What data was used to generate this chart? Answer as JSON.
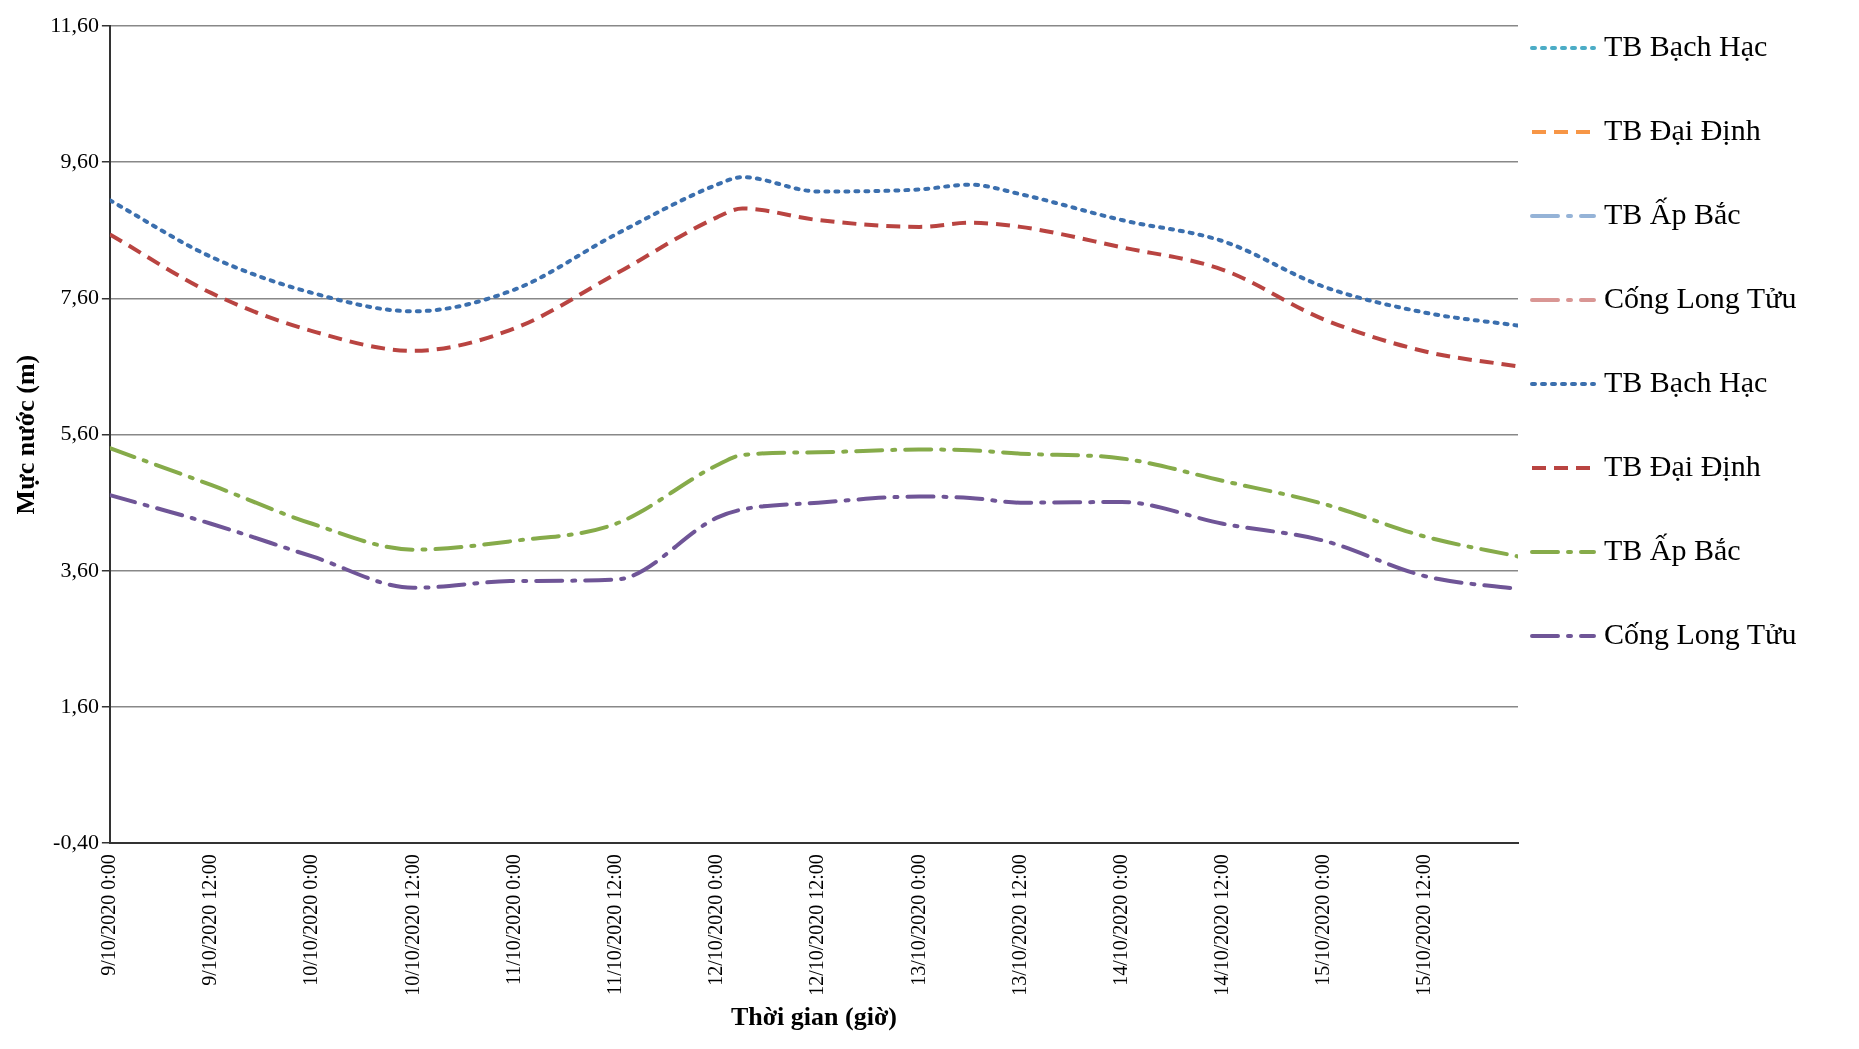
{
  "chart_data": {
    "type": "line",
    "xlabel": "Thời gian (giờ)",
    "ylabel": "Mực nước (m)",
    "x": [
      "2020-10-09T00:00",
      "2020-10-09T12:00",
      "2020-10-10T00:00",
      "2020-10-10T12:00",
      "2020-10-11T00:00",
      "2020-10-11T12:00",
      "2020-10-12T00:00",
      "2020-10-12T03:00",
      "2020-10-12T12:00",
      "2020-10-13T00:00",
      "2020-10-13T06:00",
      "2020-10-13T12:00",
      "2020-10-14T00:00",
      "2020-10-14T12:00",
      "2020-10-15T00:00",
      "2020-10-15T12:00",
      "2020-10-15T23:00"
    ],
    "xlim": [
      "2020-10-09T00:00",
      "2020-10-15T23:00"
    ],
    "xticks": [
      {
        "value": "2020-10-09T00:00",
        "label": "9/10/2020 0:00"
      },
      {
        "value": "2020-10-09T12:00",
        "label": "9/10/2020 12:00"
      },
      {
        "value": "2020-10-10T00:00",
        "label": "10/10/2020 0:00"
      },
      {
        "value": "2020-10-10T12:00",
        "label": "10/10/2020 12:00"
      },
      {
        "value": "2020-10-11T00:00",
        "label": "11/10/2020 0:00"
      },
      {
        "value": "2020-10-11T12:00",
        "label": "11/10/2020 12:00"
      },
      {
        "value": "2020-10-12T00:00",
        "label": "12/10/2020 0:00"
      },
      {
        "value": "2020-10-12T12:00",
        "label": "12/10/2020 12:00"
      },
      {
        "value": "2020-10-13T00:00",
        "label": "13/10/2020 0:00"
      },
      {
        "value": "2020-10-13T12:00",
        "label": "13/10/2020 12:00"
      },
      {
        "value": "2020-10-14T00:00",
        "label": "14/10/2020 0:00"
      },
      {
        "value": "2020-10-14T12:00",
        "label": "14/10/2020 12:00"
      },
      {
        "value": "2020-10-15T00:00",
        "label": "15/10/2020 0:00"
      },
      {
        "value": "2020-10-15T12:00",
        "label": "15/10/2020 12:00"
      }
    ],
    "ylim": [
      -0.4,
      11.6
    ],
    "yticks": [
      {
        "value": -0.4,
        "label": "-0,40"
      },
      {
        "value": 1.6,
        "label": "1,60"
      },
      {
        "value": 3.6,
        "label": "3,60"
      },
      {
        "value": 5.6,
        "label": "5,60"
      },
      {
        "value": 7.6,
        "label": "7,60"
      },
      {
        "value": 9.6,
        "label": "9,60"
      },
      {
        "value": 11.6,
        "label": "11,60"
      }
    ],
    "grid": "y",
    "legend": "right",
    "marker": "none",
    "series": [
      {
        "name": "TB Bạch Hạc",
        "color": "#4bacc6",
        "line_style": "dotted",
        "values": [
          null,
          null,
          null,
          null,
          null,
          null,
          null,
          null,
          null,
          null,
          null,
          null,
          null,
          null,
          null,
          null,
          null
        ]
      },
      {
        "name": "TB Đại Định",
        "color": "#f79646",
        "line_style": "dashed",
        "values": [
          null,
          null,
          null,
          null,
          null,
          null,
          null,
          null,
          null,
          null,
          null,
          null,
          null,
          null,
          null,
          null,
          null
        ]
      },
      {
        "name": "TB Ấp Bắc",
        "color": "#95b3d7",
        "line_style": "dashdot",
        "values": [
          null,
          null,
          null,
          null,
          null,
          null,
          null,
          null,
          null,
          null,
          null,
          null,
          null,
          null,
          null,
          null,
          null
        ]
      },
      {
        "name": "Cống Long Tửu",
        "color": "#d99694",
        "line_style": "dashdot",
        "values": [
          null,
          null,
          null,
          null,
          null,
          null,
          null,
          null,
          null,
          null,
          null,
          null,
          null,
          null,
          null,
          null,
          null
        ]
      },
      {
        "name": "TB Bạch Hạc",
        "color": "#3b6fae",
        "line_style": "dotted",
        "values": [
          9.04,
          8.21,
          7.68,
          7.41,
          7.73,
          8.54,
          9.27,
          9.38,
          9.17,
          9.2,
          9.27,
          9.13,
          8.75,
          8.44,
          7.77,
          7.39,
          7.2
        ]
      },
      {
        "name": "TB Đại Định",
        "color": "#b94441",
        "line_style": "dashed",
        "values": [
          8.54,
          7.68,
          7.12,
          6.83,
          7.16,
          7.96,
          8.79,
          8.92,
          8.75,
          8.65,
          8.71,
          8.65,
          8.35,
          8.02,
          7.29,
          6.82,
          6.6
        ]
      },
      {
        "name": "TB Ấp Bắc",
        "color": "#86ab4a",
        "line_style": "dashdot",
        "values": [
          5.4,
          4.86,
          4.29,
          3.91,
          4.04,
          4.29,
          5.15,
          5.3,
          5.34,
          5.38,
          5.37,
          5.32,
          5.25,
          4.92,
          4.58,
          4.1,
          3.81
        ]
      },
      {
        "name": "Cống Long Tửu",
        "color": "#6f5597",
        "line_style": "dashdot",
        "values": [
          4.71,
          4.29,
          3.81,
          3.35,
          3.45,
          3.47,
          4.38,
          4.5,
          4.6,
          4.69,
          4.67,
          4.6,
          4.61,
          4.29,
          4.04,
          3.52,
          3.33
        ]
      }
    ]
  }
}
